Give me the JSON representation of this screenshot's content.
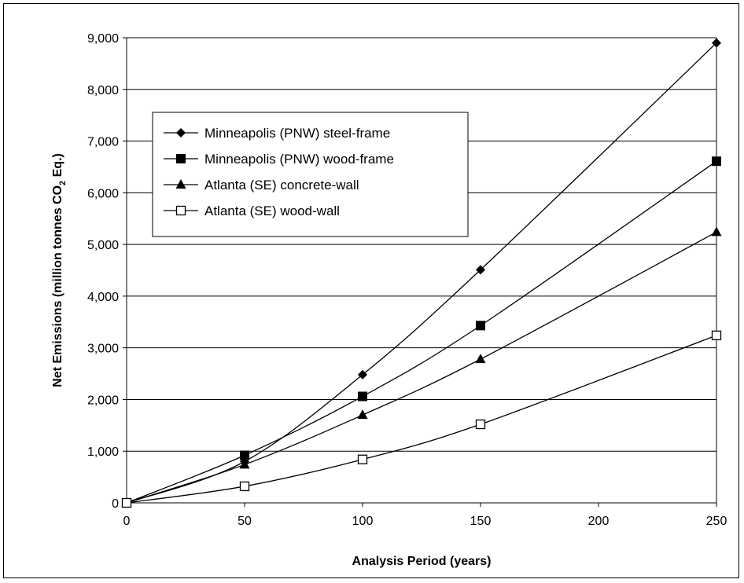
{
  "chart_data": {
    "type": "line",
    "x": [
      0,
      50,
      100,
      150,
      250
    ],
    "xlabel": "Analysis Period (years)",
    "ylabel_main": "Net Emissions (million tonnes CO",
    "ylabel_sub": "2",
    "ylabel_tail": " Eq.)",
    "xlim": [
      0,
      250
    ],
    "ylim": [
      0,
      9000
    ],
    "x_ticks": [
      0,
      50,
      100,
      150,
      200,
      250
    ],
    "y_ticks": [
      0,
      1000,
      2000,
      3000,
      4000,
      5000,
      6000,
      7000,
      8000,
      9000
    ],
    "x_tick_labels": [
      "0",
      "50",
      "100",
      "150",
      "200",
      "250"
    ],
    "y_tick_labels": [
      "0",
      "1,000",
      "2,000",
      "3,000",
      "4,000",
      "5,000",
      "6,000",
      "7,000",
      "8,000",
      "9,000"
    ],
    "grid": "horizontal",
    "legend_position": "upper-left",
    "series": [
      {
        "name": "Minneapolis (PNW) steel-frame",
        "marker": "diamond",
        "values": [
          0,
          800,
          2480,
          4510,
          8900
        ]
      },
      {
        "name": "Minneapolis (PNW) wood-frame",
        "marker": "square",
        "values": [
          0,
          920,
          2060,
          3430,
          6610
        ]
      },
      {
        "name": "Atlanta (SE) concrete-wall",
        "marker": "triangle",
        "values": [
          0,
          740,
          1700,
          2780,
          5240
        ]
      },
      {
        "name": "Atlanta (SE) wood-wall",
        "marker": "open-square",
        "values": [
          0,
          320,
          840,
          1520,
          3240
        ]
      }
    ]
  }
}
